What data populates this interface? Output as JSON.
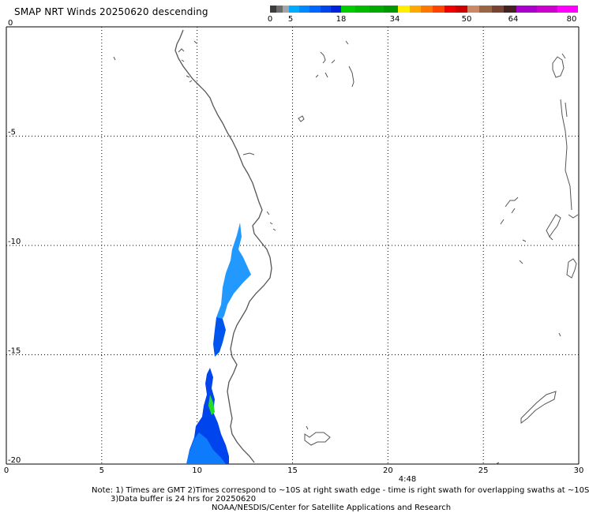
{
  "title": "SMAP NRT Winds  20250620  descending",
  "colorbar": {
    "labels": [
      "0",
      "5",
      "18",
      "34",
      "50",
      "64",
      "80"
    ],
    "segments": [
      [
        "#3c3c3c",
        "#6e6e6e",
        "#a5a5a5"
      ],
      [
        "#00aaff",
        "#0088ff",
        "#0066ff",
        "#0044ee",
        "#0022dd"
      ],
      [
        "#00cc00",
        "#00bb00",
        "#00aa00",
        "#009900"
      ],
      [
        "#ffee00",
        "#ffaa00",
        "#ff7700",
        "#ff4400",
        "#ee0000",
        "#cc0000"
      ],
      [
        "#cc8866",
        "#996644",
        "#774433",
        "#442222"
      ],
      [
        "#aa00cc",
        "#cc00cc",
        "#ff00ff"
      ]
    ]
  },
  "map": {
    "lat_ticks": [
      "0",
      "-5",
      "-10",
      "-15",
      "-20"
    ],
    "lon_ticks": [
      "0",
      "5",
      "10",
      "15",
      "20",
      "25",
      "30"
    ],
    "lat_range": [
      -20,
      0
    ],
    "lon_range": [
      0,
      30
    ],
    "swath_colors": {
      "light": "#22aaff",
      "mid": "#0077ee",
      "dark": "#0033dd",
      "green": "#22dd22"
    },
    "time_label": "4:48"
  },
  "notes": {
    "line1": "Note: 1) Times are GMT 2)Times correspond to ~10S at right swath edge - time is right swath for overlapping swaths at ~10S",
    "line2": "3)Data buffer is 24 hrs for 20250620",
    "line3": "NOAA/NESDIS/Center for Satellite Applications and Research"
  }
}
